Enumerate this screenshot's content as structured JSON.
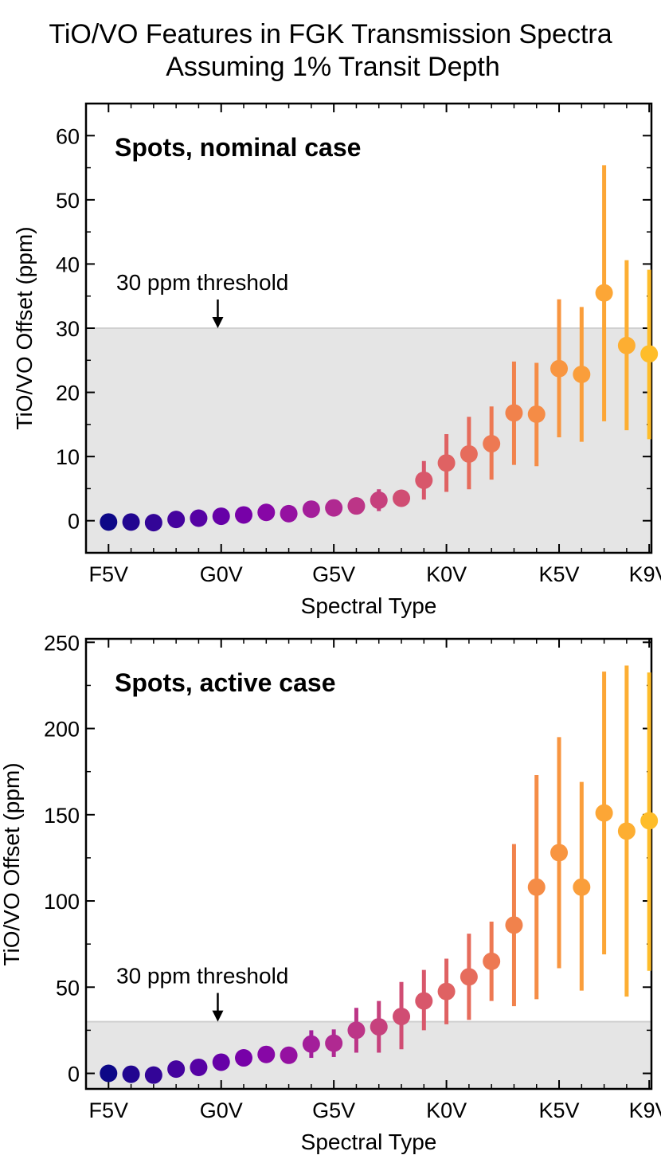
{
  "figure": {
    "title_line1": "TiO/VO Features in FGK Transmission Spectra",
    "title_line2": "Assuming 1% Transit Depth"
  },
  "chart_data": [
    {
      "type": "scatter",
      "title": "Spots, nominal case",
      "xlabel": "Spectral Type",
      "ylabel": "TiO/VO Offset (ppm)",
      "xlim": [
        -1,
        24.1
      ],
      "ylim": [
        -5,
        65
      ],
      "xticks": [
        0,
        5,
        10,
        15,
        20,
        24
      ],
      "xtick_labels": [
        "F5V",
        "G0V",
        "G5V",
        "K0V",
        "K5V",
        "K9V"
      ],
      "yticks": [
        0,
        10,
        20,
        30,
        40,
        50,
        60
      ],
      "threshold": 30,
      "threshold_label": "30 ppm threshold",
      "threshold_arrow_x": 4.85,
      "x": [
        0,
        1,
        2,
        3,
        4,
        5,
        6,
        7,
        8,
        9,
        10,
        11,
        12,
        13,
        14,
        15,
        16,
        17,
        18,
        19,
        20,
        21,
        22,
        23,
        24
      ],
      "values": [
        -0.2,
        -0.2,
        -0.3,
        0.2,
        0.4,
        0.7,
        0.9,
        1.3,
        1.1,
        1.8,
        2.0,
        2.3,
        3.2,
        3.5,
        6.3,
        9.0,
        10.4,
        12.0,
        16.8,
        16.6,
        23.7,
        22.8,
        35.5,
        27.3,
        26.0
      ],
      "err_low": [
        0.2,
        0.2,
        0.2,
        0.3,
        0.3,
        0.4,
        0.4,
        0.5,
        0.5,
        0.6,
        0.7,
        0.8,
        1.7,
        1.0,
        3.0,
        4.5,
        5.5,
        5.6,
        8.1,
        8.1,
        10.7,
        10.5,
        20.0,
        13.2,
        13.3
      ],
      "err_high": [
        0.2,
        0.2,
        0.2,
        0.3,
        0.3,
        0.4,
        0.4,
        0.5,
        0.5,
        0.6,
        0.7,
        0.8,
        1.7,
        1.0,
        3.0,
        4.5,
        5.8,
        5.8,
        8.0,
        8.0,
        10.8,
        10.5,
        19.9,
        13.3,
        13.1
      ]
    },
    {
      "type": "scatter",
      "title": "Spots, active case",
      "xlabel": "Spectral Type",
      "ylabel": "TiO/VO Offset (ppm)",
      "xlim": [
        -1,
        24.1
      ],
      "ylim": [
        -9,
        252
      ],
      "xticks": [
        0,
        5,
        10,
        15,
        20,
        24
      ],
      "xtick_labels": [
        "F5V",
        "G0V",
        "G5V",
        "K0V",
        "K5V",
        "K9V"
      ],
      "yticks": [
        0,
        50,
        100,
        150,
        200,
        250
      ],
      "threshold": 30,
      "threshold_label": "30 ppm threshold",
      "threshold_arrow_x": 4.85,
      "x": [
        0,
        1,
        2,
        3,
        4,
        5,
        6,
        7,
        8,
        9,
        10,
        11,
        12,
        13,
        14,
        15,
        16,
        17,
        18,
        19,
        20,
        21,
        22,
        23,
        24
      ],
      "values": [
        0,
        -0.5,
        -1,
        2.5,
        3.5,
        6.5,
        9,
        11,
        10.5,
        17,
        17.5,
        25,
        27,
        33,
        42,
        47.5,
        56,
        65,
        86,
        108,
        128,
        108,
        151,
        140.5,
        146.5
      ],
      "err_low": [
        0.5,
        0.5,
        0.5,
        1,
        1,
        1.5,
        1.5,
        2,
        2,
        8,
        8,
        13,
        15,
        19,
        17,
        19,
        25,
        23,
        47,
        65,
        67,
        60,
        82,
        96,
        87
      ],
      "err_high": [
        0.5,
        0.5,
        0.5,
        1,
        1,
        1.5,
        1.5,
        2,
        2,
        8,
        8,
        13,
        15,
        20,
        18,
        19,
        25,
        23,
        47,
        65,
        67,
        61,
        82,
        96,
        86
      ]
    }
  ],
  "colors": {
    "threshold_fill": "#e5e5e5",
    "threshold_line": "#d0d0d0",
    "axis": "#000000",
    "points": [
      "#0d0887",
      "#220690",
      "#330597",
      "#45039e",
      "#5602a4",
      "#6600a7",
      "#7701a8",
      "#8707a6",
      "#9511a1",
      "#a31e9a",
      "#b02991",
      "#bc3587",
      "#c6417d",
      "#d04d73",
      "#d8576b",
      "#df6263",
      "#e66c5c",
      "#ed7953",
      "#f1824c",
      "#f58c46",
      "#f89540",
      "#fa9e3b",
      "#fca636",
      "#fdae32",
      "#febd2a"
    ]
  }
}
